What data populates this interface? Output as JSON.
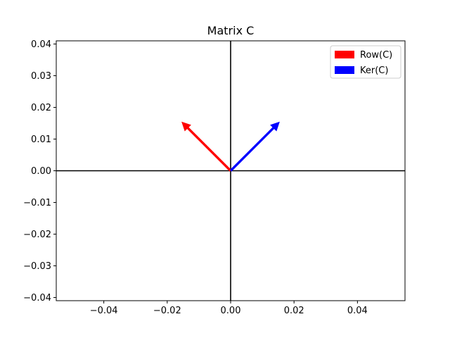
{
  "chart_data": {
    "type": "quiver",
    "title": "Matrix C",
    "xlabel": "",
    "ylabel": "",
    "xlim": [
      -0.055,
      0.055
    ],
    "ylim": [
      -0.041,
      0.041
    ],
    "xticks": [
      -0.04,
      -0.02,
      0.0,
      0.02,
      0.04
    ],
    "xtick_labels": [
      "−0.04",
      "−0.02",
      "0.00",
      "0.02",
      "0.04"
    ],
    "yticks": [
      -0.04,
      -0.03,
      -0.02,
      -0.01,
      0.0,
      0.01,
      0.02,
      0.03,
      0.04
    ],
    "ytick_labels": [
      "−0.04",
      "−0.03",
      "−0.02",
      "−0.01",
      "0.00",
      "0.01",
      "0.02",
      "0.03",
      "0.04"
    ],
    "grid": false,
    "legend_position": "top-right",
    "axis_lines": true,
    "series": [
      {
        "name": "Row(C)",
        "color": "#ff0000",
        "origin": [
          0,
          0
        ],
        "vector": [
          -0.0155,
          0.0155
        ]
      },
      {
        "name": "Ker(C)",
        "color": "#0000ff",
        "origin": [
          0,
          0
        ],
        "vector": [
          0.0155,
          0.0155
        ]
      }
    ]
  }
}
